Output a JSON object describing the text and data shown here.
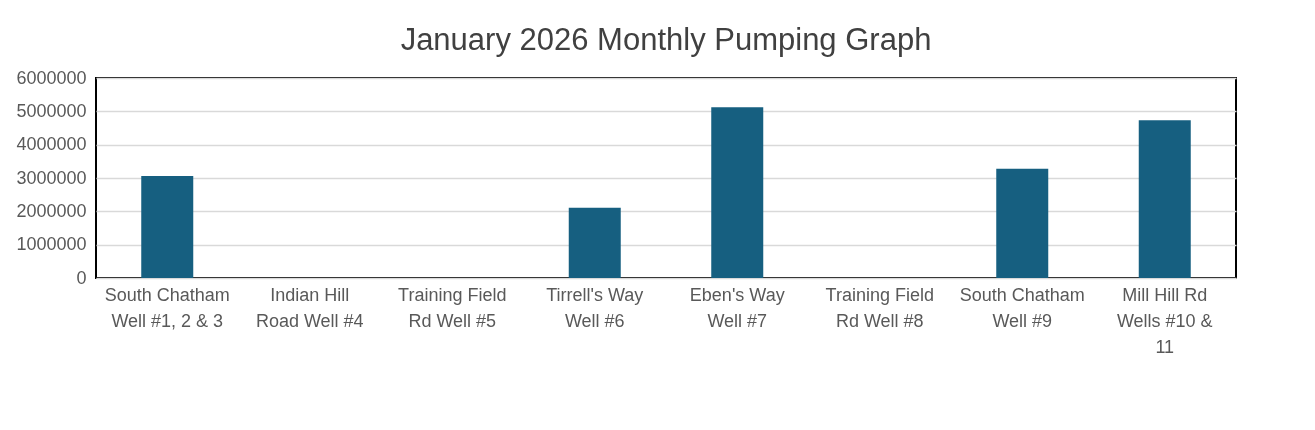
{
  "chart_data": {
    "type": "bar",
    "title": "January 2026 Monthly Pumping Graph",
    "categories": [
      "South Chatham Well #1, 2 & 3",
      "Indian Hill Road Well #4",
      "Training Field Rd Well #5",
      "Tirrell's Way Well #6",
      "Eben's Way Well #7",
      "Training Field Rd Well #8",
      "South Chatham Well #9",
      "Mill Hill Rd Wells  #10 & 11"
    ],
    "values": [
      3060000,
      0,
      0,
      2110000,
      5120000,
      0,
      3280000,
      4730000
    ],
    "color": "#165f80",
    "ylim": [
      0,
      6000000
    ],
    "yticks": [
      0,
      1000000,
      2000000,
      3000000,
      4000000,
      5000000,
      6000000
    ],
    "grid": "y"
  }
}
